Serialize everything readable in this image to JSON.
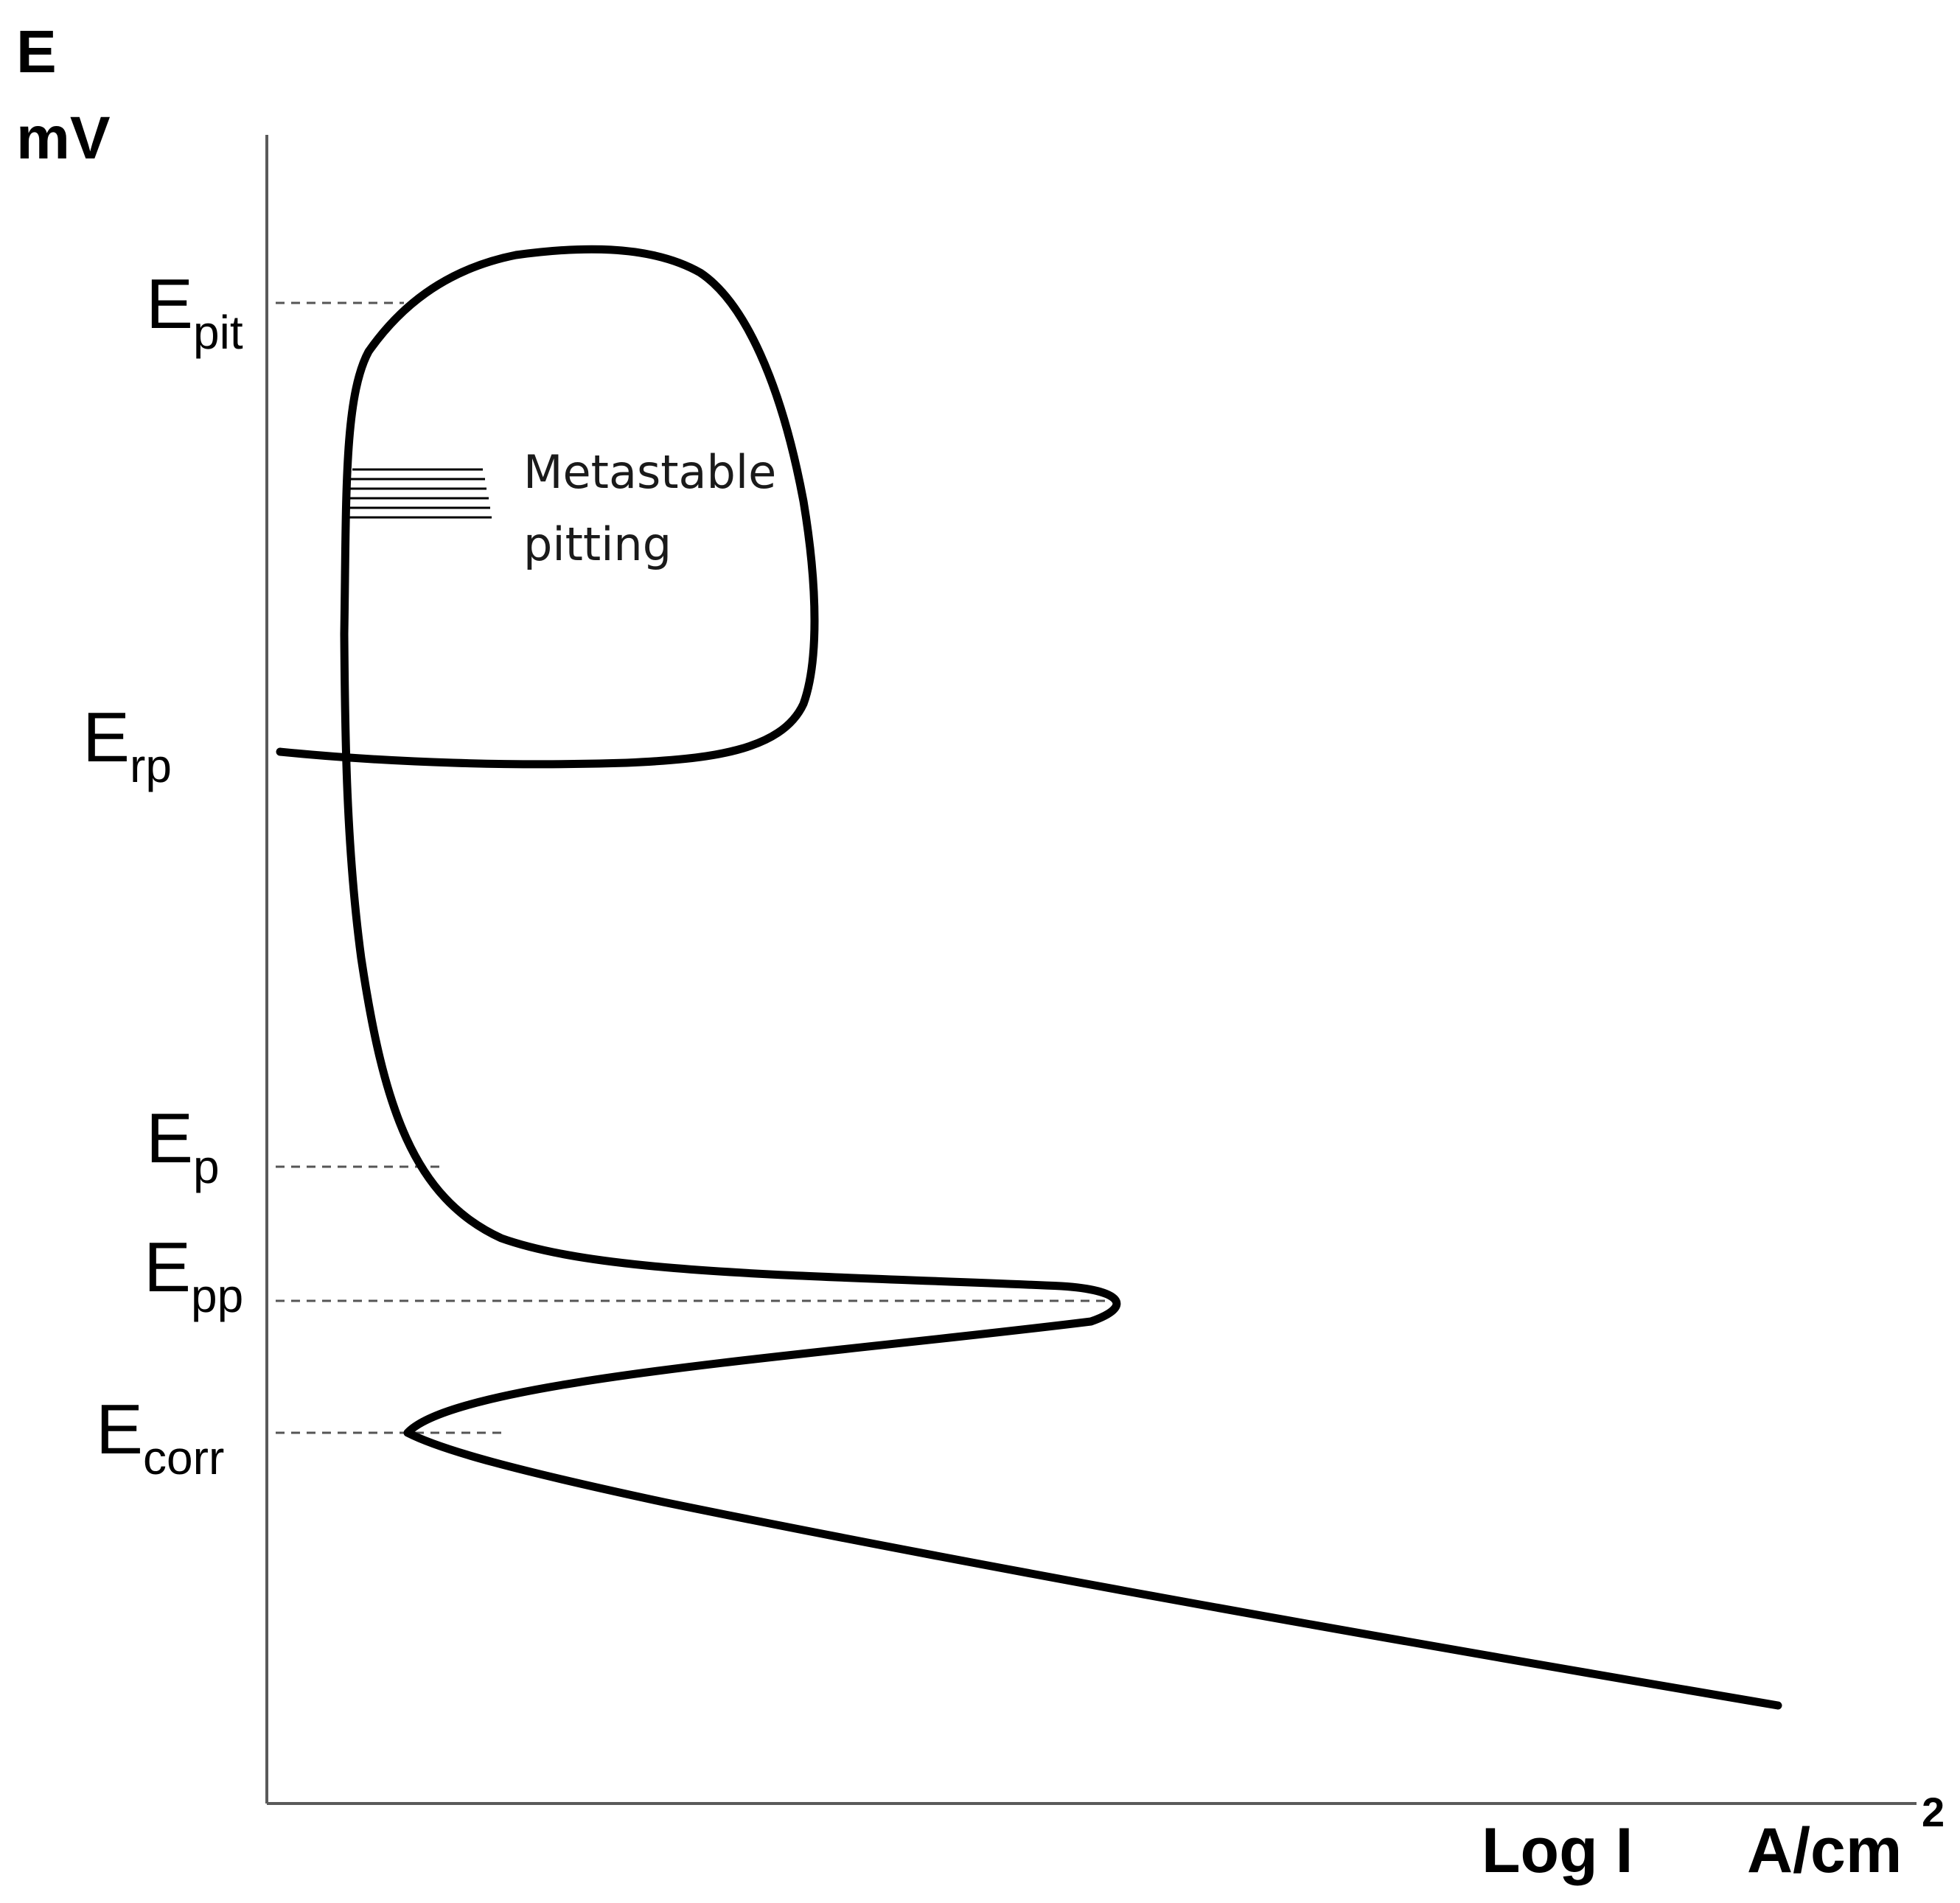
{
  "chart_data": {
    "type": "line",
    "title": "",
    "ylabel": {
      "symbol": "E",
      "unit": "mV"
    },
    "xlabel": {
      "quantity": "Log I",
      "unit": "A/cm",
      "unit_superscript": "2"
    },
    "grid": false,
    "legend": "none",
    "line_color": "#000000",
    "reference_line_color": "#555555",
    "potential_levels": [
      {
        "name": "E_pit",
        "main": "E",
        "sub": "pit"
      },
      {
        "name": "E_rp",
        "main": "E",
        "sub": "rp"
      },
      {
        "name": "E_p",
        "main": "E",
        "sub": "p"
      },
      {
        "name": "E_pp",
        "main": "E",
        "sub": "pp"
      },
      {
        "name": "E_corr",
        "main": "E",
        "sub": "corr"
      }
    ],
    "annotations": [
      {
        "name": "metastable-pitting",
        "lines": [
          "Metastable",
          "pitting"
        ]
      }
    ]
  }
}
